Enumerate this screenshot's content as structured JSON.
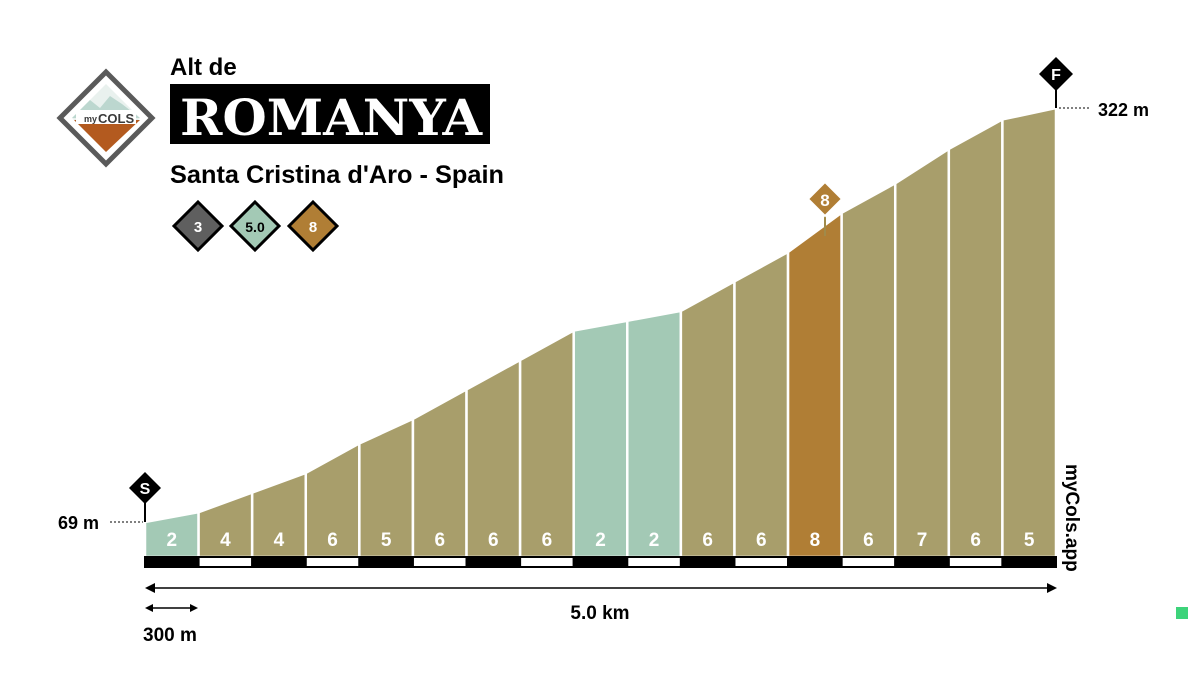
{
  "brand": {
    "logo_text_small": "my",
    "logo_text_big": "COLS",
    "vertical_credit": "myCols.app"
  },
  "header": {
    "pretitle": "Alt de",
    "title": "ROMANYA",
    "subtitle": "Santa Cristina d'Aro - Spain",
    "badges": [
      {
        "label": "3",
        "color": "#5f5f5f"
      },
      {
        "label": "5.0",
        "color": "#a3c9b5"
      },
      {
        "label": "8",
        "color": "#b07e35"
      }
    ]
  },
  "markers": {
    "start": "S",
    "finish": "F",
    "max_gradient": "8"
  },
  "labels": {
    "start_elevation": "69 m",
    "end_elevation": "322 m",
    "distance_total": "5.0 km",
    "scale_segment": "300 m"
  },
  "colors": {
    "grade_low": "#a3c9b5",
    "grade_mid": "#a89e6b",
    "grade_high": "#b07e35",
    "outline": "#000000",
    "logo_accent": "#b35a1f"
  },
  "chart_data": {
    "type": "area",
    "title": "ROMANYA",
    "xlabel": "5.0 km",
    "ylabel": "",
    "distance_km": 5.0,
    "segment_length_m": 300,
    "elevation_start_m": 69,
    "elevation_end_m": 322,
    "max_gradient_percent": 8,
    "max_gradient_segment_index": 12,
    "gradients": [
      2,
      4,
      4,
      6,
      5,
      6,
      6,
      6,
      2,
      2,
      6,
      6,
      8,
      6,
      7,
      6,
      5
    ],
    "elevations_m": [
      69,
      75,
      87,
      99,
      117,
      132,
      150,
      168,
      186,
      192,
      198,
      216,
      234,
      258,
      276,
      297,
      315,
      322
    ]
  }
}
